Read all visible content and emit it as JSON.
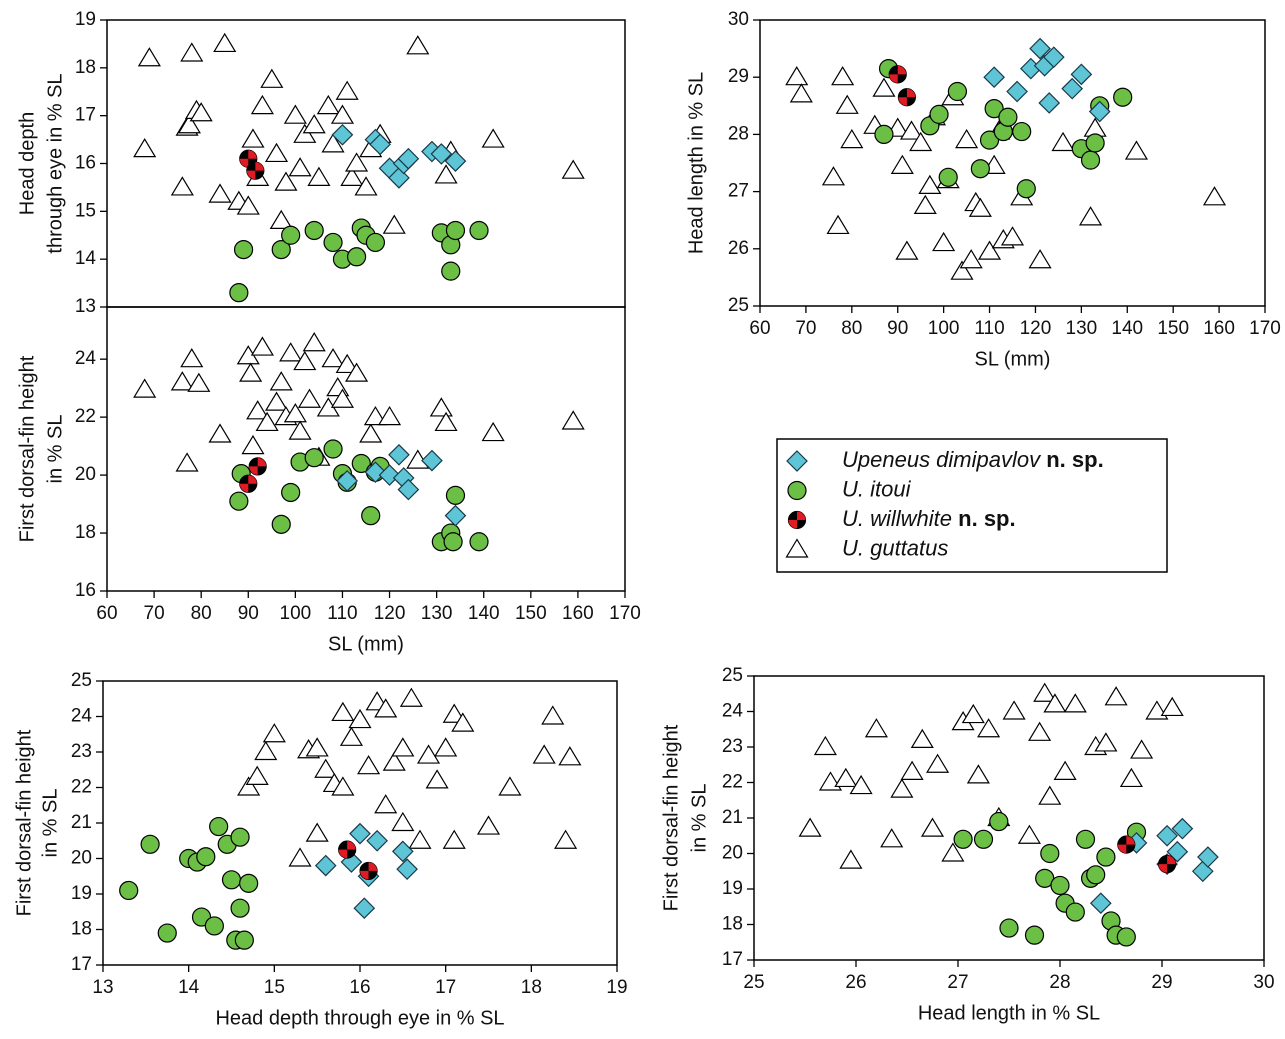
{
  "legend": {
    "entries": [
      {
        "name": "Upeneus dimipavlov",
        "suffix": "n. sp.",
        "marker": "diamond",
        "color": "#5ec5d6"
      },
      {
        "name": "U. itoui",
        "marker": "circle",
        "color": "#6cbf45"
      },
      {
        "name": "U. willwhite",
        "suffix": "n. sp.",
        "marker": "quartered",
        "color": "#e01b24"
      },
      {
        "name": "U. guttatus",
        "marker": "triangle",
        "color": "#ffffff"
      }
    ]
  },
  "chart_data": [
    {
      "type": "scatter",
      "ylabel": [
        "Head depth",
        "through eye in % SL"
      ],
      "xlim": [
        60,
        170
      ],
      "ylim": [
        13,
        19
      ],
      "yticks": [
        13,
        14,
        15,
        16,
        17,
        18,
        19
      ],
      "series": [
        {
          "x": [
            110,
            117,
            118,
            120,
            122,
            123,
            124,
            129,
            131,
            134
          ],
          "values": [
            16.6,
            16.5,
            16.4,
            15.9,
            15.7,
            16.0,
            16.1,
            16.25,
            16.2,
            16.05
          ]
        },
        {
          "x": [
            88,
            89,
            97,
            99,
            104,
            108,
            110,
            113,
            114,
            115,
            117,
            131,
            133,
            133,
            134,
            139
          ],
          "values": [
            13.3,
            14.2,
            14.2,
            14.5,
            14.6,
            14.35,
            14.0,
            14.05,
            14.65,
            14.5,
            14.35,
            14.55,
            14.3,
            13.75,
            14.6,
            14.6
          ]
        },
        {
          "x": [
            90,
            91.5
          ],
          "values": [
            16.1,
            15.85
          ]
        },
        {
          "x": [
            68,
            69,
            76,
            77,
            77.5,
            78,
            79,
            80,
            84,
            85,
            88,
            90,
            91,
            92,
            93,
            95,
            96,
            97,
            98,
            100,
            101,
            102,
            104,
            105,
            107,
            108,
            110,
            111,
            112,
            113,
            115,
            116,
            118,
            121,
            126,
            132,
            133,
            142,
            159
          ],
          "values": [
            16.3,
            18.2,
            15.5,
            16.75,
            16.8,
            18.3,
            17.1,
            17.05,
            15.35,
            18.5,
            15.2,
            15.1,
            16.5,
            15.7,
            17.2,
            17.75,
            16.2,
            14.8,
            15.6,
            17.0,
            15.9,
            16.6,
            16.8,
            15.7,
            17.2,
            16.4,
            17.0,
            17.5,
            15.7,
            16.0,
            15.5,
            16.3,
            16.6,
            14.7,
            18.45,
            15.75,
            16.25,
            16.5,
            15.85
          ]
        }
      ]
    },
    {
      "type": "scatter",
      "xlabel": "SL (mm)",
      "ylabel": [
        "First dorsal-fin height",
        "in % SL"
      ],
      "xlim": [
        60,
        170
      ],
      "ylim": [
        16,
        25.8
      ],
      "xticks": [
        60,
        70,
        80,
        90,
        100,
        110,
        120,
        130,
        140,
        150,
        160,
        170
      ],
      "yticks": [
        16,
        18,
        20,
        22,
        24
      ],
      "series": [
        {
          "x": [
            111,
            117,
            120,
            122,
            123,
            124,
            129,
            134
          ],
          "values": [
            19.8,
            20.1,
            20.0,
            20.7,
            19.9,
            19.5,
            20.5,
            18.6
          ]
        },
        {
          "x": [
            88,
            88.5,
            97,
            99,
            101,
            104,
            108,
            110,
            111,
            114,
            116,
            117,
            118,
            131,
            133,
            133.5,
            134,
            139
          ],
          "values": [
            19.1,
            20.05,
            18.3,
            19.4,
            20.45,
            20.6,
            20.9,
            20.05,
            19.75,
            20.4,
            18.6,
            20.1,
            20.3,
            17.7,
            18.0,
            17.7,
            19.3,
            17.7
          ]
        },
        {
          "x": [
            90,
            92
          ],
          "values": [
            19.7,
            20.3
          ]
        },
        {
          "x": [
            68,
            76,
            77,
            78,
            79.5,
            84,
            90,
            90.5,
            91,
            92,
            93,
            94,
            96,
            97,
            98,
            99,
            100,
            101,
            102,
            103,
            104,
            105,
            107,
            108,
            109,
            110,
            111,
            113,
            116,
            117,
            120,
            126,
            131,
            132,
            142,
            159
          ],
          "values": [
            22.95,
            23.2,
            20.4,
            24.0,
            23.15,
            21.4,
            24.1,
            23.5,
            21.0,
            22.2,
            24.4,
            21.8,
            22.5,
            23.2,
            22.0,
            24.2,
            22.1,
            21.5,
            23.9,
            22.6,
            24.55,
            20.6,
            22.3,
            24.0,
            23.0,
            22.6,
            23.8,
            23.5,
            21.4,
            22.0,
            22.0,
            20.5,
            22.3,
            21.8,
            21.45,
            21.85
          ]
        }
      ]
    },
    {
      "type": "scatter",
      "xlabel": "SL (mm)",
      "ylabel": [
        "Head length in % SL"
      ],
      "xlim": [
        60,
        170
      ],
      "ylim": [
        25,
        30
      ],
      "xticks": [
        60,
        70,
        80,
        90,
        100,
        110,
        120,
        130,
        140,
        150,
        160,
        170
      ],
      "yticks": [
        25,
        26,
        27,
        28,
        29,
        30
      ],
      "series": [
        {
          "x": [
            111,
            116,
            119,
            121,
            122,
            123,
            124,
            128,
            130,
            134
          ],
          "values": [
            29.0,
            28.75,
            29.15,
            29.5,
            29.2,
            28.55,
            29.35,
            28.8,
            29.05,
            28.4
          ]
        },
        {
          "x": [
            87,
            88,
            97,
            99,
            101,
            103,
            108,
            110,
            111,
            113,
            114,
            117,
            118,
            130,
            132,
            133,
            134,
            139
          ],
          "values": [
            28.0,
            29.15,
            28.15,
            28.35,
            27.25,
            28.75,
            27.4,
            27.9,
            28.45,
            28.05,
            28.3,
            28.05,
            27.05,
            27.75,
            27.55,
            27.85,
            28.5,
            28.65
          ]
        },
        {
          "x": [
            90,
            92
          ],
          "values": [
            29.05,
            28.65
          ]
        },
        {
          "x": [
            68,
            69,
            76,
            77,
            78,
            79,
            80,
            85,
            87,
            90,
            91,
            92,
            93,
            95,
            96,
            97,
            98,
            100,
            101,
            102,
            104,
            105,
            106,
            107,
            108,
            110,
            111,
            112,
            113,
            115,
            117,
            121,
            126,
            132,
            133,
            142,
            159
          ],
          "values": [
            29.0,
            28.7,
            27.25,
            26.4,
            29.0,
            28.5,
            27.9,
            28.15,
            28.8,
            28.1,
            27.45,
            25.95,
            28.05,
            27.85,
            26.75,
            27.1,
            28.3,
            26.1,
            27.2,
            28.65,
            25.6,
            27.9,
            25.8,
            26.8,
            26.7,
            25.95,
            27.45,
            28.05,
            26.15,
            26.2,
            26.9,
            25.8,
            27.85,
            26.55,
            28.1,
            27.7,
            26.9
          ]
        }
      ]
    },
    {
      "type": "scatter",
      "xlabel": "Head depth through eye in % SL",
      "ylabel": [
        "First dorsal-fin height",
        "in % SL"
      ],
      "xlim": [
        13,
        19
      ],
      "ylim": [
        17,
        25
      ],
      "xticks": [
        13,
        14,
        15,
        16,
        17,
        18,
        19
      ],
      "yticks": [
        17,
        18,
        19,
        20,
        21,
        22,
        23,
        24,
        25
      ],
      "series": [
        {
          "x": [
            15.6,
            15.9,
            16.0,
            16.05,
            16.1,
            16.2,
            16.5,
            16.55
          ],
          "values": [
            19.8,
            19.9,
            20.7,
            18.6,
            19.5,
            20.5,
            20.2,
            19.7
          ]
        },
        {
          "x": [
            13.3,
            13.55,
            13.75,
            14.0,
            14.1,
            14.15,
            14.2,
            14.3,
            14.35,
            14.45,
            14.5,
            14.55,
            14.6,
            14.6,
            14.65,
            14.7
          ],
          "values": [
            19.1,
            20.4,
            17.9,
            20.0,
            19.9,
            18.35,
            20.05,
            18.1,
            20.9,
            20.4,
            19.4,
            17.7,
            20.6,
            18.6,
            17.7,
            19.3
          ]
        },
        {
          "x": [
            15.85,
            16.1
          ],
          "values": [
            20.25,
            19.65
          ]
        },
        {
          "x": [
            14.7,
            14.8,
            14.9,
            15.0,
            15.3,
            15.4,
            15.5,
            15.5,
            15.6,
            15.7,
            15.8,
            15.8,
            15.9,
            16.0,
            16.1,
            16.2,
            16.3,
            16.3,
            16.4,
            16.5,
            16.5,
            16.6,
            16.7,
            16.8,
            16.9,
            17.0,
            17.1,
            17.1,
            17.2,
            17.5,
            17.75,
            18.15,
            18.25,
            18.4,
            18.45
          ],
          "values": [
            22.0,
            22.3,
            23.0,
            23.5,
            20.0,
            23.05,
            20.7,
            23.1,
            22.5,
            22.1,
            24.1,
            22.0,
            23.4,
            23.9,
            22.6,
            24.4,
            21.5,
            24.2,
            22.7,
            23.1,
            21.0,
            24.5,
            20.5,
            22.9,
            22.2,
            23.1,
            24.05,
            20.5,
            23.8,
            20.9,
            22.0,
            22.9,
            24.0,
            20.5,
            22.85
          ]
        }
      ]
    },
    {
      "type": "scatter",
      "xlabel": "Head length in % SL",
      "ylabel": [
        "First dorsal-fin height",
        "in % SL"
      ],
      "xlim": [
        25,
        30
      ],
      "ylim": [
        17,
        25
      ],
      "xticks": [
        25,
        26,
        27,
        28,
        29,
        30
      ],
      "yticks": [
        17,
        18,
        19,
        20,
        21,
        22,
        23,
        24,
        25
      ],
      "series": [
        {
          "x": [
            28.4,
            28.75,
            29.05,
            29.15,
            29.2,
            29.4,
            29.45,
            29.05
          ],
          "values": [
            18.6,
            20.3,
            20.5,
            20.05,
            20.7,
            19.5,
            19.9,
            19.7
          ]
        },
        {
          "x": [
            27.05,
            27.25,
            27.4,
            27.5,
            27.75,
            27.85,
            27.9,
            28.0,
            28.05,
            28.15,
            28.25,
            28.3,
            28.35,
            28.45,
            28.5,
            28.55,
            28.65,
            28.75
          ],
          "values": [
            20.4,
            20.4,
            20.9,
            17.9,
            17.7,
            19.3,
            20.0,
            19.1,
            18.6,
            18.35,
            20.4,
            19.3,
            19.4,
            19.9,
            18.1,
            17.7,
            17.65,
            20.6
          ]
        },
        {
          "x": [
            28.65,
            29.05
          ],
          "values": [
            20.25,
            19.7
          ]
        },
        {
          "x": [
            25.55,
            25.7,
            25.75,
            25.9,
            25.95,
            26.05,
            26.2,
            26.35,
            26.45,
            26.55,
            26.65,
            26.75,
            26.8,
            26.95,
            27.05,
            27.15,
            27.2,
            27.3,
            27.4,
            27.55,
            27.7,
            27.8,
            27.85,
            27.9,
            27.95,
            28.05,
            28.15,
            28.35,
            28.45,
            28.55,
            28.7,
            28.8,
            28.95,
            29.1
          ],
          "values": [
            20.7,
            23.0,
            22.0,
            22.1,
            19.8,
            21.9,
            23.5,
            20.4,
            21.8,
            22.3,
            23.2,
            20.7,
            22.5,
            20.0,
            23.7,
            23.9,
            22.2,
            23.5,
            21.0,
            24.0,
            20.5,
            23.4,
            24.5,
            21.6,
            24.2,
            22.3,
            24.2,
            23.0,
            23.1,
            24.4,
            22.1,
            22.9,
            24.0,
            24.1
          ]
        }
      ]
    }
  ]
}
